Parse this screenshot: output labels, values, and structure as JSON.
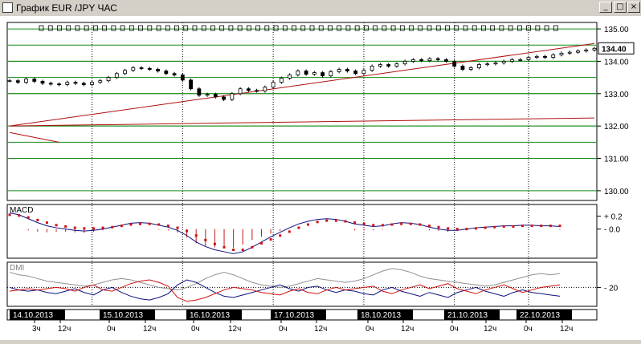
{
  "window": {
    "title": "График EUR /JPY  ЧАС",
    "buttons": {
      "minimize": "_",
      "maximize": "□",
      "close": "×"
    }
  },
  "chart_data": [
    {
      "type": "line",
      "panel": "price",
      "instrument": "EUR/JPY",
      "timeframe": "ЧАС",
      "style": "candlestick",
      "ylim": [
        129.7,
        135.2
      ],
      "yticks": [
        130.0,
        131.0,
        132.0,
        133.0,
        134.0,
        135.0
      ],
      "ytick_labels": [
        "130.00",
        "131.00",
        "132.00",
        "133.00",
        "134.00",
        "135.00"
      ],
      "current_price": 134.4,
      "current_price_label": "134.40",
      "horizontal_levels": [
        131.5,
        132.0,
        133.0,
        133.5,
        134.0,
        134.5
      ],
      "x_date_labels": [
        "14.10.2013",
        "15.10.2013",
        "16.10.2013",
        "17.10.2013",
        "18.10.2013",
        "21.10.2013",
        "22.10.2013"
      ],
      "x_hour_labels": [
        "3ч",
        "12ч",
        "0ч",
        "12ч",
        "0ч",
        "12ч",
        "0ч",
        "12ч",
        "0ч",
        "12ч",
        "0ч",
        "12ч",
        "0ч",
        "12ч"
      ],
      "close_series": [
        133.4,
        133.35,
        133.45,
        133.38,
        133.32,
        133.3,
        133.28,
        133.35,
        133.32,
        133.28,
        133.35,
        133.4,
        133.5,
        133.62,
        133.72,
        133.8,
        133.78,
        133.75,
        133.7,
        133.62,
        133.58,
        133.42,
        133.15,
        132.95,
        132.98,
        132.9,
        132.82,
        133.0,
        133.15,
        133.1,
        133.08,
        133.2,
        133.35,
        133.48,
        133.58,
        133.7,
        133.6,
        133.65,
        133.55,
        133.68,
        133.75,
        133.7,
        133.62,
        133.72,
        133.85,
        133.9,
        133.85,
        133.92,
        134.0,
        134.05,
        134.02,
        134.08,
        134.05,
        134.0,
        133.85,
        133.75,
        133.8,
        133.9,
        133.92,
        133.95,
        134.0,
        134.05,
        134.05,
        134.12,
        134.15,
        134.12,
        134.2,
        134.25,
        134.28,
        134.32,
        134.35,
        134.4
      ],
      "trendlines": [
        {
          "from": [
            0,
            132.0
          ],
          "to": [
            71,
            134.55
          ]
        },
        {
          "from": [
            0,
            132.0
          ],
          "to": [
            71,
            132.25
          ]
        },
        {
          "from": [
            0,
            131.8
          ],
          "to": [
            6,
            131.5
          ]
        }
      ]
    },
    {
      "type": "line",
      "panel": "macd",
      "label": "MACD",
      "ylim": [
        -0.45,
        0.38
      ],
      "yticks": [
        0.2,
        0.0
      ],
      "ytick_labels": [
        "+ 0.2",
        "- 0.0"
      ],
      "series": [
        {
          "values": [
            0.25,
            0.22,
            0.16,
            0.1,
            0.05,
            0.02,
            0.0,
            -0.02,
            -0.03,
            -0.02,
            0.0,
            0.03,
            0.06,
            0.09,
            0.1,
            0.09,
            0.06,
            0.03,
            -0.02,
            -0.1,
            -0.2,
            -0.27,
            -0.32,
            -0.35,
            -0.38,
            -0.35,
            -0.28,
            -0.2,
            -0.12,
            -0.05,
            0.02,
            0.08,
            0.12,
            0.15,
            0.16,
            0.15,
            0.12,
            0.08,
            0.06,
            0.04,
            0.05,
            0.08,
            0.1,
            0.09,
            0.07,
            0.03,
            0.0,
            -0.02,
            -0.02,
            0.0,
            0.02,
            0.03,
            0.04,
            0.05,
            0.05,
            0.06,
            0.06,
            0.05,
            0.05,
            0.04
          ]
        },
        {
          "values": [
            0.22,
            0.21,
            0.18,
            0.14,
            0.1,
            0.06,
            0.04,
            0.02,
            0.01,
            0.01,
            0.02,
            0.03,
            0.05,
            0.07,
            0.08,
            0.08,
            0.07,
            0.05,
            0.02,
            -0.03,
            -0.1,
            -0.17,
            -0.23,
            -0.28,
            -0.32,
            -0.32,
            -0.28,
            -0.22,
            -0.16,
            -0.1,
            -0.04,
            0.02,
            0.07,
            0.11,
            0.13,
            0.13,
            0.12,
            0.1,
            0.08,
            0.06,
            0.06,
            0.07,
            0.08,
            0.08,
            0.07,
            0.05,
            0.03,
            0.01,
            0.0,
            0.0,
            0.01,
            0.02,
            0.03,
            0.04,
            0.04,
            0.05,
            0.05,
            0.05,
            0.05,
            0.05
          ]
        }
      ]
    },
    {
      "type": "line",
      "panel": "dmi",
      "label": "DMI",
      "ylim": [
        5,
        40
      ],
      "yticks": [
        20
      ],
      "ytick_labels": [
        "- 20"
      ],
      "series": [
        {
          "values": [
            32,
            30,
            29,
            27,
            25,
            24,
            23,
            22,
            21,
            22,
            24,
            26,
            27,
            26,
            24,
            22,
            20,
            19,
            18,
            20,
            23,
            27,
            30,
            32,
            30,
            27,
            24,
            22,
            21,
            20,
            21,
            23,
            25,
            27,
            26,
            25,
            24,
            25,
            27,
            30,
            33,
            35,
            34,
            32,
            29,
            27,
            26,
            25,
            24,
            23,
            22,
            21,
            22,
            24,
            26,
            28,
            30,
            31,
            30,
            31
          ]
        },
        {
          "values": [
            20,
            18,
            17,
            18,
            16,
            15,
            17,
            19,
            16,
            14,
            18,
            20,
            16,
            13,
            11,
            10,
            12,
            15,
            22,
            26,
            24,
            20,
            16,
            13,
            12,
            14,
            16,
            18,
            20,
            22,
            19,
            17,
            20,
            21,
            18,
            16,
            18,
            17,
            15,
            14,
            18,
            20,
            17,
            15,
            13,
            16,
            14,
            12,
            16,
            18,
            20,
            17,
            15,
            13,
            16,
            18,
            16,
            15,
            14,
            13
          ]
        },
        {
          "values": [
            17,
            18,
            19,
            18,
            19,
            20,
            19,
            17,
            20,
            22,
            18,
            17,
            20,
            23,
            25,
            26,
            24,
            21,
            12,
            9,
            10,
            12,
            15,
            18,
            20,
            19,
            18,
            16,
            15,
            14,
            17,
            19,
            16,
            15,
            18,
            20,
            18,
            19,
            20,
            21,
            17,
            15,
            18,
            20,
            22,
            19,
            21,
            23,
            19,
            17,
            15,
            18,
            20,
            22,
            19,
            16,
            18,
            20,
            21,
            22
          ]
        }
      ]
    }
  ]
}
